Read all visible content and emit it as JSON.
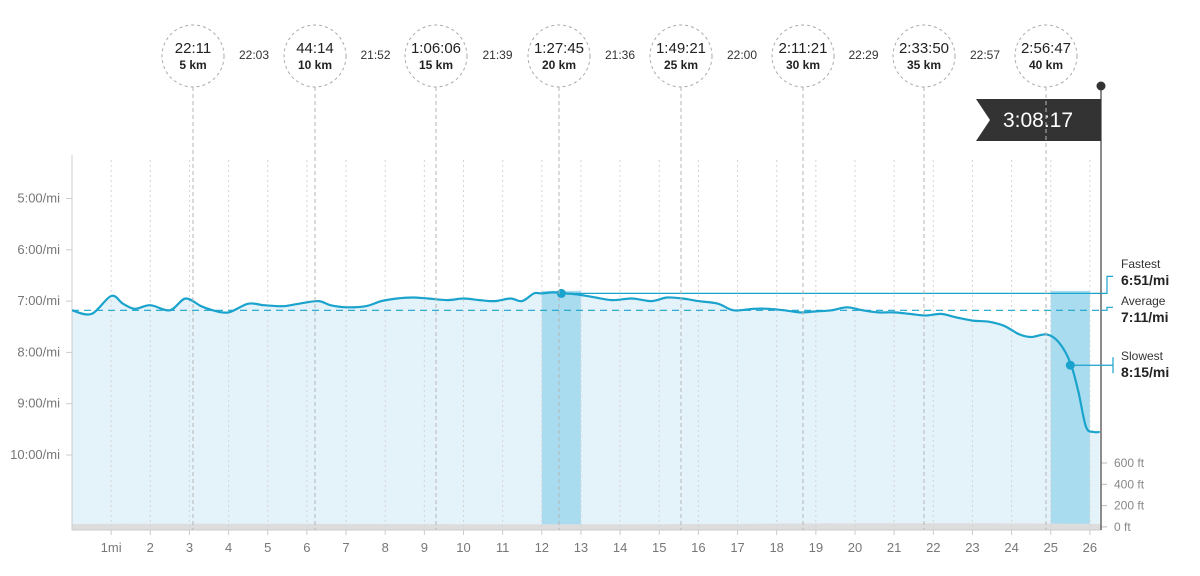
{
  "chart_data": {
    "type": "line",
    "yaxis_labels": [
      "5:00/mi",
      "6:00/mi",
      "7:00/mi",
      "8:00/mi",
      "9:00/mi",
      "10:00/mi"
    ],
    "x_labels": [
      "1mi",
      "2",
      "3",
      "4",
      "5",
      "6",
      "7",
      "8",
      "9",
      "10",
      "11",
      "12",
      "13",
      "14",
      "15",
      "16",
      "17",
      "18",
      "19",
      "20",
      "21",
      "22",
      "23",
      "24",
      "25",
      "26"
    ],
    "ylim_min_per_mile": [
      4.5,
      11.0
    ],
    "xlim_miles": [
      0,
      26.4
    ],
    "pace_series": {
      "name": "",
      "x": [
        0,
        0.5,
        1.0,
        1.3,
        1.6,
        2.0,
        2.5,
        2.9,
        3.3,
        3.6,
        4.0,
        4.5,
        4.9,
        5.4,
        5.8,
        6.3,
        6.6,
        7.0,
        7.5,
        7.9,
        8.3,
        8.7,
        9.1,
        9.6,
        10.0,
        10.4,
        10.8,
        11.2,
        11.5,
        11.8,
        12.0,
        12.3,
        12.6,
        12.9,
        13.3,
        13.8,
        14.3,
        14.8,
        15.2,
        15.6,
        16.0,
        16.5,
        16.9,
        17.4,
        17.8,
        18.2,
        18.6,
        19.0,
        19.4,
        19.8,
        20.2,
        20.6,
        21.0,
        21.4,
        21.8,
        22.2,
        22.6,
        23.0,
        23.4,
        23.8,
        24.2,
        24.5,
        24.9,
        25.2,
        25.5,
        25.7,
        25.9,
        26.1,
        26.25
      ],
      "y": [
        7.18,
        7.25,
        6.9,
        7.05,
        7.15,
        7.08,
        7.18,
        6.95,
        7.1,
        7.18,
        7.22,
        7.05,
        7.08,
        7.1,
        7.05,
        7.0,
        7.08,
        7.12,
        7.1,
        7.0,
        6.95,
        6.93,
        6.95,
        6.98,
        6.95,
        6.98,
        7.0,
        6.95,
        7.0,
        6.85,
        6.85,
        6.83,
        6.85,
        6.87,
        6.92,
        6.98,
        6.95,
        7.0,
        6.93,
        6.95,
        7.0,
        7.05,
        7.18,
        7.15,
        7.15,
        7.18,
        7.22,
        7.2,
        7.18,
        7.12,
        7.18,
        7.22,
        7.22,
        7.25,
        7.28,
        7.25,
        7.32,
        7.38,
        7.4,
        7.48,
        7.65,
        7.7,
        7.65,
        7.8,
        8.2,
        8.75,
        9.45,
        9.55,
        9.55
      ]
    },
    "highlight_ranges_miles": [
      [
        12.0,
        13.0
      ],
      [
        25.0,
        26.0
      ]
    ],
    "elevation_ticks": [
      "600 ft",
      "400 ft",
      "200 ft",
      "0 ft"
    ],
    "splits": [
      {
        "time": "22:11",
        "distance": "5 km",
        "mile": 3.1
      },
      {
        "time": "44:14",
        "distance": "10 km",
        "mile": 6.2
      },
      {
        "time": "1:06:06",
        "distance": "15 km",
        "mile": 9.3
      },
      {
        "time": "1:27:45",
        "distance": "20 km",
        "mile": 12.4
      },
      {
        "time": "1:49:21",
        "distance": "25 km",
        "mile": 15.5
      },
      {
        "time": "2:11:21",
        "distance": "30 km",
        "mile": 18.6
      },
      {
        "time": "2:33:50",
        "distance": "35 km",
        "mile": 21.7
      },
      {
        "time": "2:56:47",
        "distance": "40 km",
        "mile": 24.9
      }
    ],
    "split_gaps": [
      "22:03",
      "21:52",
      "21:39",
      "21:36",
      "22:00",
      "22:29",
      "22:57"
    ],
    "finish_time": "3:08:17",
    "stats": {
      "fastest": {
        "label": "Fastest",
        "value": "6:51/mi",
        "pace": 6.85,
        "mile": 12.5
      },
      "average": {
        "label": "Average",
        "value": "7:11/mi",
        "pace": 7.18
      },
      "slowest": {
        "label": "Slowest",
        "value": "8:15/mi",
        "pace": 8.25,
        "mile": 25.5
      }
    },
    "colors": {
      "line": "#1aa3cc",
      "fill": "#e4f2fa",
      "highlight": "#a9dcef",
      "split_circle": "#aaaaaa",
      "finish_flag": "#333333",
      "elevation": "#dddddd"
    }
  }
}
